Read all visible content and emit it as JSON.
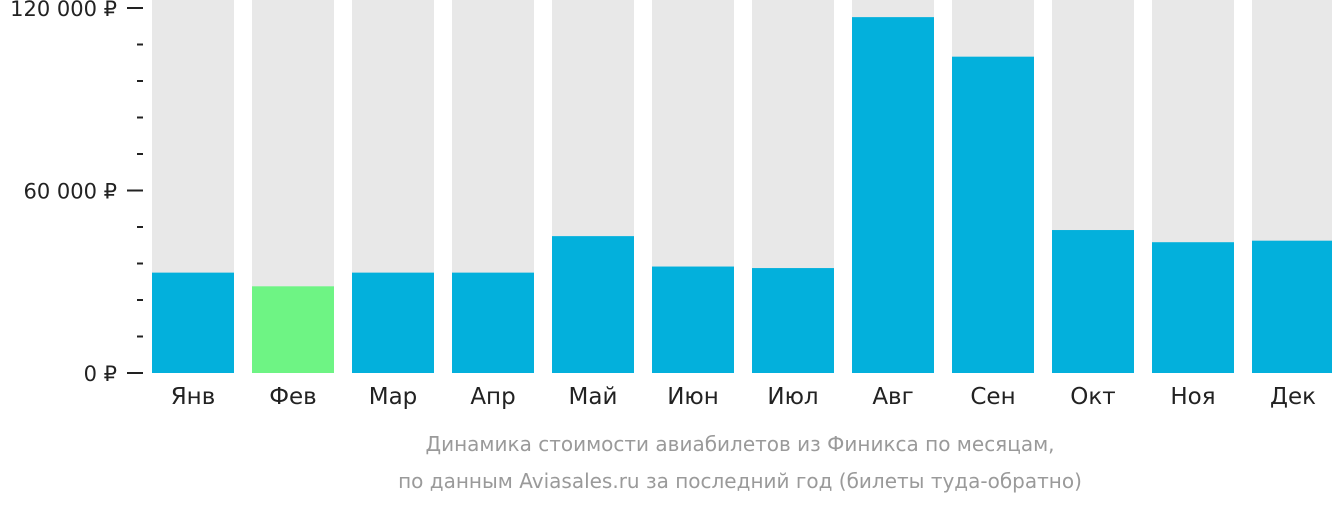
{
  "chart_data": {
    "type": "bar",
    "categories": [
      "Янв",
      "Фев",
      "Мар",
      "Апр",
      "Май",
      "Июн",
      "Июл",
      "Авг",
      "Сен",
      "Окт",
      "Ноя",
      "Дек"
    ],
    "values": [
      33000,
      28500,
      33000,
      33000,
      45000,
      35000,
      34500,
      117000,
      104000,
      47000,
      43000,
      43500
    ],
    "ylim": [
      0,
      120000
    ],
    "yticks": [
      {
        "value": 0,
        "label": "0 ₽"
      },
      {
        "value": 60000,
        "label": "60 000 ₽"
      },
      {
        "value": 120000,
        "label": "120 000 ₽"
      }
    ],
    "minor_tick_step": 12000,
    "grid": false,
    "highlight_index": 1,
    "colors": {
      "bar": "#03b0dc",
      "highlight": "#6ef484",
      "background_bar": "#e8e8e8",
      "axis": "#222222",
      "caption": "#9a9a9a"
    },
    "caption_lines": [
      "Динамика стоимости авиабилетов из Финикса по месяцам,",
      "по данным Aviasales.ru за последний год (билеты туда-обратно)"
    ]
  }
}
